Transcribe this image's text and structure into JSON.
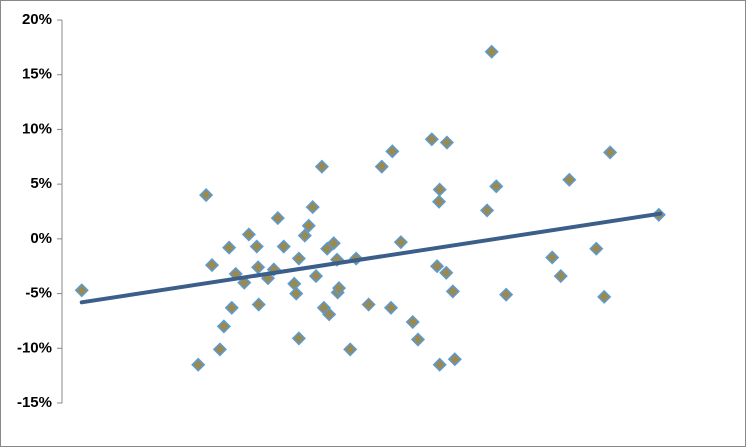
{
  "chart_data": {
    "type": "scatter",
    "xlim": [
      0,
      100
    ],
    "ylim": [
      -15,
      20
    ],
    "yticks": [
      {
        "value": -15,
        "label": "-15%"
      },
      {
        "value": -10,
        "label": "-10%"
      },
      {
        "value": -5,
        "label": "-5%"
      },
      {
        "value": 0,
        "label": "0%"
      },
      {
        "value": 5,
        "label": "5%"
      },
      {
        "value": 10,
        "label": "10%"
      },
      {
        "value": 15,
        "label": "15%"
      },
      {
        "value": 20,
        "label": "20%"
      }
    ],
    "marker_fill": "#9a8a50",
    "marker_stroke": "#5b9bd5",
    "trendline_color": "#3b5f8a",
    "points": {
      "x": [
        3.0,
        20.7,
        21.9,
        22.8,
        24.0,
        24.6,
        25.4,
        25.8,
        26.4,
        27.7,
        28.4,
        29.6,
        29.8,
        29.9,
        31.3,
        32.2,
        32.8,
        33.7,
        35.3,
        35.6,
        36.0,
        36.0,
        36.9,
        37.5,
        38.1,
        38.6,
        39.5,
        39.8,
        40.3,
        40.6,
        41.3,
        41.8,
        41.9,
        42.1,
        43.8,
        44.7,
        46.6,
        48.6,
        50.0,
        50.2,
        51.5,
        53.3,
        54.1,
        56.2,
        57.0,
        57.4,
        57.4,
        57.3,
        58.4,
        58.5,
        59.4,
        59.7,
        64.6,
        65.3,
        66.0,
        67.5,
        74.5,
        75.8,
        77.1,
        81.2,
        82.4,
        83.3,
        90.7
      ],
      "y": [
        -4.7,
        -11.5,
        4.0,
        -2.4,
        -10.1,
        -8.0,
        -0.8,
        -6.3,
        -3.2,
        -4.0,
        0.4,
        -0.7,
        -2.6,
        -6.0,
        -3.6,
        -2.8,
        1.9,
        -0.7,
        -4.1,
        -5.0,
        -1.8,
        -9.1,
        0.3,
        1.2,
        2.9,
        -3.4,
        6.6,
        -6.3,
        -0.9,
        -6.9,
        -0.4,
        -1.9,
        -4.9,
        -4.5,
        -10.1,
        -1.8,
        -6.0,
        6.6,
        -6.3,
        8.0,
        -0.3,
        -7.6,
        -9.2,
        9.1,
        -2.5,
        -11.5,
        4.5,
        3.4,
        -3.1,
        8.8,
        -4.8,
        -11.0,
        2.6,
        17.1,
        4.8,
        -5.1,
        -1.7,
        -3.4,
        5.4,
        -0.9,
        -5.3,
        7.9,
        2.2
      ]
    },
    "trendline": {
      "x": [
        3.0,
        90.9
      ],
      "y": [
        -5.8,
        2.3
      ]
    }
  }
}
